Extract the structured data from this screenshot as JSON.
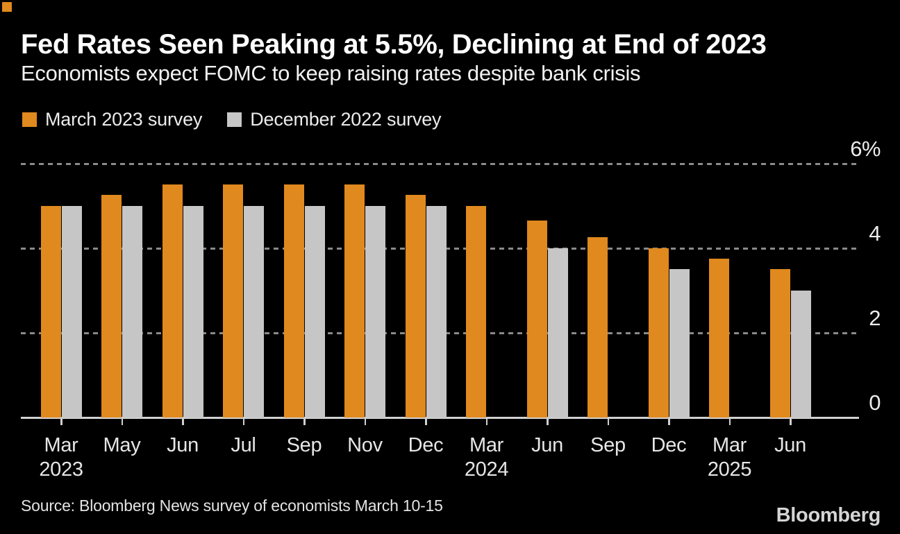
{
  "brand_mark_color": "#e0891e",
  "header": {
    "title": "Fed Rates Seen Peaking at 5.5%, Declining at End of 2023",
    "subtitle": "Economists expect FOMC to keep raising rates despite bank crisis"
  },
  "legend": [
    {
      "label": "March 2023 survey",
      "color": "#e0891e"
    },
    {
      "label": "December 2022 survey",
      "color": "#c6c6c6"
    }
  ],
  "chart_data": {
    "type": "bar",
    "categories": [
      "Mar 2023",
      "May 2023",
      "Jun 2023",
      "Jul 2023",
      "Sep 2023",
      "Nov 2023",
      "Dec 2023",
      "Mar 2024",
      "Jun 2024",
      "Sep 2024",
      "Dec 2024",
      "Mar 2025",
      "Jun 2025"
    ],
    "x_tick_labels": [
      "Mar",
      "May",
      "Jun",
      "Jul",
      "Sep",
      "Nov",
      "Dec",
      "Mar",
      "Jun",
      "Sep",
      "Dec",
      "Mar",
      "Jun"
    ],
    "x_year_labels": [
      {
        "index": 0,
        "label": "2023"
      },
      {
        "index": 7,
        "label": "2024"
      },
      {
        "index": 11,
        "label": "2025"
      }
    ],
    "series": [
      {
        "name": "March 2023 survey",
        "color": "#e0891e",
        "values": [
          5.0,
          5.25,
          5.5,
          5.5,
          5.5,
          5.5,
          5.25,
          5.0,
          4.65,
          4.25,
          4.0,
          3.75,
          3.5
        ]
      },
      {
        "name": "December 2022 survey",
        "color": "#c6c6c6",
        "values": [
          5.0,
          5.0,
          5.0,
          5.0,
          5.0,
          5.0,
          5.0,
          null,
          4.0,
          null,
          3.5,
          null,
          3.0
        ]
      }
    ],
    "title": "Fed Rates Seen Peaking at 5.5%, Declining at End of 2023",
    "subtitle": "Economists expect FOMC to keep raising rates despite bank crisis",
    "xlabel": "",
    "ylabel": "%",
    "ylim": [
      0,
      6
    ],
    "y_ticks": [
      {
        "value": 6,
        "label": "6%"
      },
      {
        "value": 4,
        "label": "4"
      },
      {
        "value": 2,
        "label": "2"
      },
      {
        "value": 0,
        "label": "0"
      }
    ],
    "grid_values": [
      2,
      4,
      6
    ],
    "grid": "dashed horizontal, labels above lines on right side",
    "legend_position": "top-left"
  },
  "footer": {
    "source": "Source: Bloomberg News survey of economists March 10-15",
    "logo": "Bloomberg"
  },
  "colors": {
    "background": "#000000",
    "bar_orange": "#e0891e",
    "bar_gray": "#c6c6c6",
    "gridline": "#8a8a8a",
    "axis_line": "#d0d0d0",
    "title_text": "#ffffff",
    "body_text": "#ececec"
  }
}
